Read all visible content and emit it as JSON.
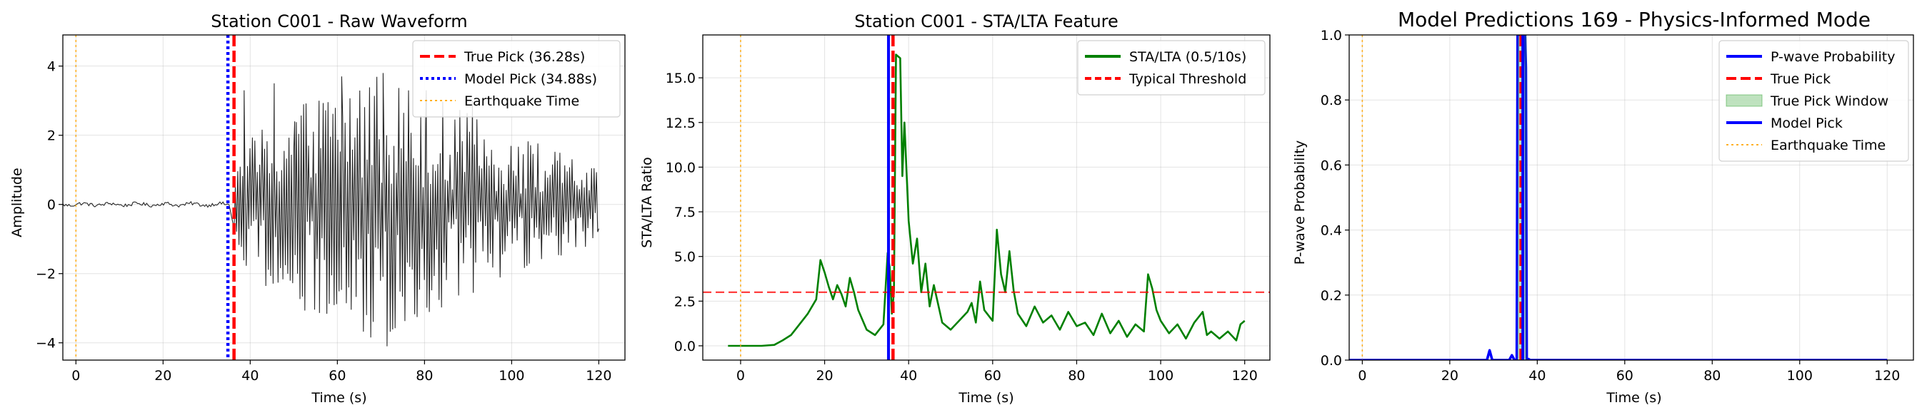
{
  "chart_data": [
    {
      "type": "line",
      "title": "Station C001 - Raw Waveform",
      "xlabel": "Time (s)",
      "ylabel": "Amplitude",
      "xlim": [
        -3,
        126
      ],
      "ylim": [
        -4.5,
        4.9
      ],
      "xticks": [
        0,
        20,
        40,
        60,
        80,
        100,
        120
      ],
      "yticks": [
        -4,
        -2,
        0,
        2,
        4
      ],
      "ytick_labels": [
        "−4",
        "−2",
        "0",
        "2",
        "4"
      ],
      "grid": true,
      "legend_position": "top-right",
      "series": [
        {
          "name": "",
          "kind": "waveform",
          "color": "#000000",
          "noise_x_range": [
            -3,
            35.5
          ],
          "noise_amplitude": 0.05,
          "signal_x_range": [
            36.3,
            120
          ],
          "signal_peak_time": 70,
          "signal_peak_amplitude": 4.1,
          "samples": [
            {
              "x": 38.6,
              "y": 3.3
            },
            {
              "x": 45.5,
              "y": 3.5
            },
            {
              "x": 50.2,
              "y": 2.4
            },
            {
              "x": 55.8,
              "y": 3.0
            },
            {
              "x": 61.0,
              "y": 3.7
            },
            {
              "x": 66.7,
              "y": -3.2
            },
            {
              "x": 70.5,
              "y": 3.8
            },
            {
              "x": 71.4,
              "y": -4.1
            },
            {
              "x": 80.4,
              "y": 3.3
            },
            {
              "x": 91.0,
              "y": 3.0
            },
            {
              "x": 97.4,
              "y": -1.8
            },
            {
              "x": 120.0,
              "y": -0.7
            }
          ]
        },
        {
          "name": "True Pick (36.28s)",
          "kind": "vline",
          "x": 36.28,
          "color": "#ff0000",
          "style": "dashed"
        },
        {
          "name": "Model Pick (34.88s)",
          "kind": "vline",
          "x": 34.88,
          "color": "#0000ff",
          "style": "dotted"
        },
        {
          "name": "Earthquake Time",
          "kind": "vline",
          "x": 0,
          "color": "#ffa500",
          "style": "dotted"
        }
      ]
    },
    {
      "type": "line",
      "title": "Station C001 - STA/LTA Feature",
      "xlabel": "Time (s)",
      "ylabel": "STA/LTA Ratio",
      "xlim": [
        -9,
        126
      ],
      "ylim": [
        -0.8,
        17.4
      ],
      "xticks": [
        0,
        20,
        40,
        60,
        80,
        100,
        120
      ],
      "yticks": [
        0.0,
        2.5,
        5.0,
        7.5,
        10.0,
        12.5,
        15.0
      ],
      "ytick_labels": [
        "0.0",
        "2.5",
        "5.0",
        "7.5",
        "10.0",
        "12.5",
        "15.0"
      ],
      "grid": true,
      "legend_position": "top-right",
      "series": [
        {
          "name": "STA/LTA (0.5/10s)",
          "kind": "line",
          "color": "#008000",
          "x": [
            -3,
            0,
            5,
            8,
            10,
            12,
            14,
            16,
            18,
            19,
            20,
            21,
            22,
            23,
            24,
            25,
            26,
            27,
            28,
            30,
            32,
            34,
            35,
            35.5,
            36,
            36.5,
            37,
            38,
            38.5,
            39,
            40,
            41,
            42,
            43,
            44,
            45,
            46,
            48,
            50,
            52,
            54,
            55,
            56,
            57,
            58,
            60,
            61,
            62,
            63,
            64,
            65,
            66,
            68,
            70,
            72,
            74,
            76,
            78,
            80,
            82,
            84,
            86,
            88,
            90,
            92,
            94,
            96,
            97,
            98,
            99,
            100,
            102,
            104,
            106,
            108,
            110,
            111,
            112,
            114,
            116,
            118,
            119,
            120
          ],
          "y": [
            0.0,
            0.0,
            0.0,
            0.05,
            0.3,
            0.6,
            1.2,
            1.8,
            2.6,
            4.8,
            4.1,
            3.3,
            2.6,
            3.4,
            2.9,
            2.2,
            3.8,
            3.0,
            2.0,
            0.9,
            0.6,
            1.2,
            5.2,
            4.4,
            1.8,
            3.0,
            16.3,
            16.1,
            9.5,
            12.5,
            7.0,
            4.6,
            6.0,
            3.0,
            4.6,
            2.2,
            3.4,
            1.3,
            0.9,
            1.4,
            1.9,
            2.4,
            1.3,
            3.6,
            2.0,
            1.4,
            6.5,
            4.0,
            3.0,
            5.3,
            3.1,
            1.8,
            1.1,
            2.2,
            1.3,
            1.7,
            0.9,
            1.9,
            1.1,
            1.3,
            0.6,
            1.8,
            0.7,
            1.4,
            0.5,
            1.2,
            0.8,
            4.0,
            3.2,
            2.0,
            1.4,
            0.7,
            1.2,
            0.4,
            1.3,
            1.9,
            0.6,
            0.8,
            0.4,
            0.8,
            0.3,
            1.2,
            1.4
          ]
        },
        {
          "name": "Typical Threshold",
          "kind": "hline",
          "y": 3.0,
          "color": "#ff0000",
          "style": "dashed"
        },
        {
          "name": "",
          "kind": "vline",
          "x": 35.2,
          "color": "#0000ff",
          "style": "solid"
        },
        {
          "name": "",
          "kind": "vline",
          "x": 36.28,
          "color": "#ff0000",
          "style": "dashed"
        },
        {
          "name": "",
          "kind": "vline",
          "x": 0,
          "color": "#ffa500",
          "style": "dotted"
        }
      ]
    },
    {
      "type": "line",
      "title": "Model Predictions 169 - Physics-Informed Mode",
      "xlabel": "Time (s)",
      "ylabel": "P-wave Probability",
      "xlim": [
        -3,
        126
      ],
      "ylim": [
        0.0,
        1.0
      ],
      "xticks": [
        0,
        20,
        40,
        60,
        80,
        100,
        120
      ],
      "yticks": [
        0.0,
        0.2,
        0.4,
        0.6,
        0.8,
        1.0
      ],
      "ytick_labels": [
        "0.0",
        "0.2",
        "0.4",
        "0.6",
        "0.8",
        "1.0"
      ],
      "grid": true,
      "legend_position": "top-right",
      "series": [
        {
          "name": "P-wave Probability",
          "kind": "line",
          "color": "#0000ff",
          "x": [
            -3,
            28.5,
            29.1,
            29.7,
            30.3,
            31,
            33.6,
            34.2,
            34.8,
            35.3,
            35.5,
            37.2,
            37.4,
            37.6,
            38,
            38.4,
            40,
            120
          ],
          "y": [
            0.0,
            0.0,
            0.03,
            0.0,
            0.0,
            0.0,
            0.0,
            0.015,
            0.0,
            0.0,
            1.0,
            1.0,
            0.9,
            0.0,
            0.003,
            0.0,
            0.0,
            0.0
          ]
        },
        {
          "name": "True Pick",
          "kind": "vline",
          "x": 36.28,
          "color": "#ff0000",
          "style": "dashed"
        },
        {
          "name": "True Pick Window",
          "kind": "span",
          "x0": 35.5,
          "x1": 37.6,
          "color": "#2ca02c"
        },
        {
          "name": "Model Pick",
          "kind": "vline",
          "x": 36.7,
          "color": "#0000ff",
          "style": "solid"
        },
        {
          "name": "Earthquake Time",
          "kind": "vline",
          "x": 0,
          "color": "#ffa500",
          "style": "dotted"
        }
      ]
    }
  ]
}
